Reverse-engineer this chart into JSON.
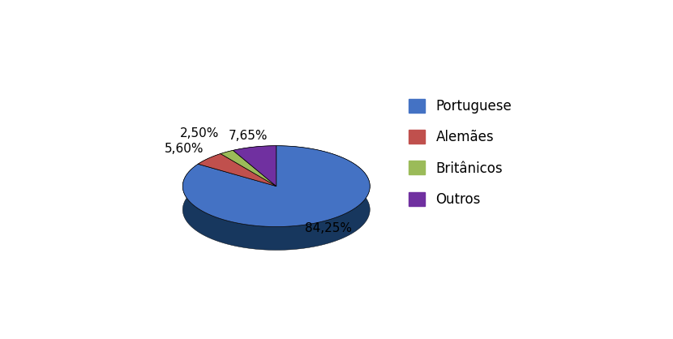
{
  "labels": [
    "Portuguese",
    "Alemães",
    "Britânicos",
    "Outros"
  ],
  "values": [
    84.25,
    5.6,
    2.5,
    7.65
  ],
  "colors_top": [
    "#4472C4",
    "#C0504D",
    "#9BBB59",
    "#7030A0"
  ],
  "colors_side": [
    "#17375E",
    "#963634",
    "#76923C",
    "#3F1768"
  ],
  "pct_labels": [
    "84,25%",
    "5,60%",
    "2,50%",
    "7,65%"
  ],
  "legend_labels": [
    "Portuguese",
    "Alemães",
    "Britânicos",
    "Outros"
  ],
  "background_color": "#FFFFFF",
  "startangle": 90
}
